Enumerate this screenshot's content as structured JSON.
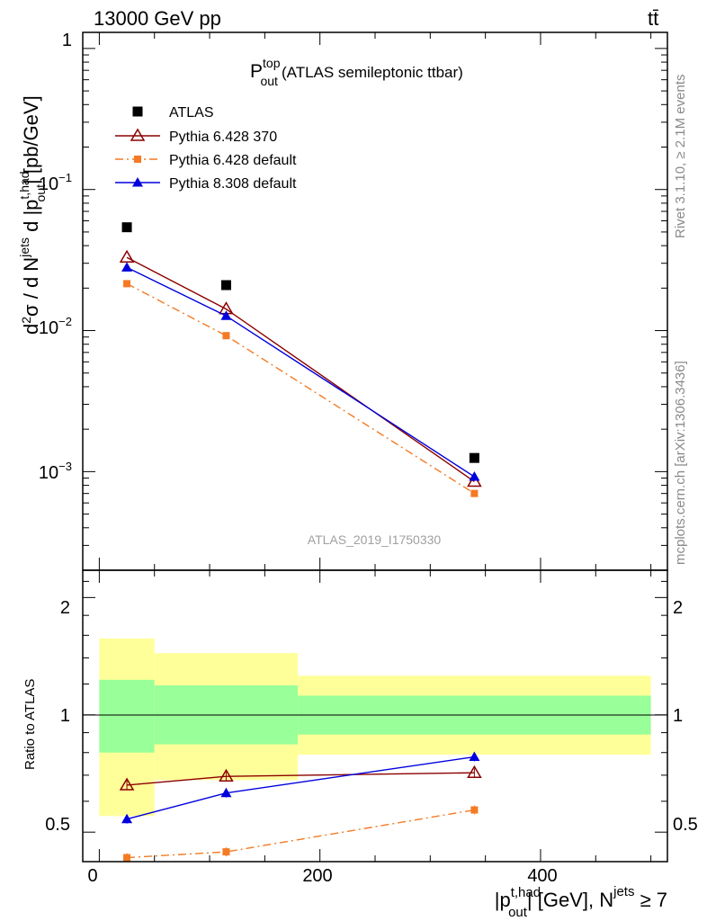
{
  "header": {
    "energy_label": "13000 GeV pp",
    "process_label": "tt̄"
  },
  "side_labels": {
    "rivet": "Rivet 3.1.10, ≥ 2.1M events",
    "mcplots": "mcplots.cern.ch [arXiv:1306.3436]"
  },
  "chart_data": [
    {
      "type": "scatter",
      "panel": "main",
      "title_main": "P",
      "title_sup": "top",
      "title_sub": "out",
      "title_rest": "(ATLAS semileptonic ttbar)",
      "watermark": "ATLAS_2019_I1750330",
      "ylabel": "d²σ / d N^jets d |p_out^t,had| [pb/GeV]",
      "yscale": "log",
      "ylim": [
        0.0002,
        1.3
      ],
      "xlim": [
        -15,
        515
      ],
      "grid": false,
      "legend_position": "top-left",
      "y_tick_labels": [
        "1",
        "10⁻¹",
        "10⁻²",
        "10⁻³"
      ],
      "series": [
        {
          "name": "ATLAS",
          "color": "#000000",
          "marker": "square",
          "line": "none",
          "x": [
            25,
            115,
            340
          ],
          "y": [
            0.054,
            0.021,
            0.00125
          ]
        },
        {
          "name": "Pythia 6.428 370",
          "color": "#8b0000",
          "marker": "open-triangle",
          "line": "solid",
          "x": [
            25,
            115,
            340
          ],
          "y": [
            0.033,
            0.0142,
            0.00085
          ]
        },
        {
          "name": "Pythia 6.428 default",
          "color": "#f47a24",
          "marker": "square-small",
          "line": "dashdot",
          "x": [
            25,
            115,
            340
          ],
          "y": [
            0.0215,
            0.0092,
            0.0007
          ]
        },
        {
          "name": "Pythia 8.308 default",
          "color": "#0000dd",
          "marker": "filled-triangle",
          "line": "solid",
          "x": [
            25,
            115,
            340
          ],
          "y": [
            0.028,
            0.0127,
            0.00092
          ]
        }
      ]
    },
    {
      "type": "scatter",
      "panel": "ratio",
      "ylabel": "Ratio to ATLAS",
      "xlabel": "|p_out^t,had| [GeV], N^jets ≥ 7",
      "yscale": "log",
      "ylim": [
        0.42,
        2.35
      ],
      "xlim": [
        -15,
        515
      ],
      "x_tick_labels": [
        "0",
        "200",
        "400"
      ],
      "y_tick_labels": [
        "2",
        "1",
        "0.5"
      ],
      "bands": [
        {
          "x": [
            0,
            50
          ],
          "yellow": [
            0.55,
            1.57
          ],
          "green": [
            0.8,
            1.23
          ]
        },
        {
          "x": [
            50,
            180
          ],
          "yellow": [
            0.68,
            1.44
          ],
          "green": [
            0.84,
            1.19
          ]
        },
        {
          "x": [
            180,
            500
          ],
          "yellow": [
            0.79,
            1.26
          ],
          "green": [
            0.89,
            1.12
          ]
        }
      ],
      "series": [
        {
          "name": "Pythia 6.428 370",
          "color": "#8b0000",
          "x": [
            25,
            115,
            340
          ],
          "y": [
            0.66,
            0.695,
            0.71
          ]
        },
        {
          "name": "Pythia 6.428 default",
          "color": "#f47a24",
          "x": [
            25,
            115,
            340
          ],
          "y": [
            0.43,
            0.445,
            0.57
          ]
        },
        {
          "name": "Pythia 8.308 default",
          "color": "#0000dd",
          "x": [
            25,
            115,
            340
          ],
          "y": [
            0.54,
            0.63,
            0.78
          ]
        }
      ]
    }
  ]
}
